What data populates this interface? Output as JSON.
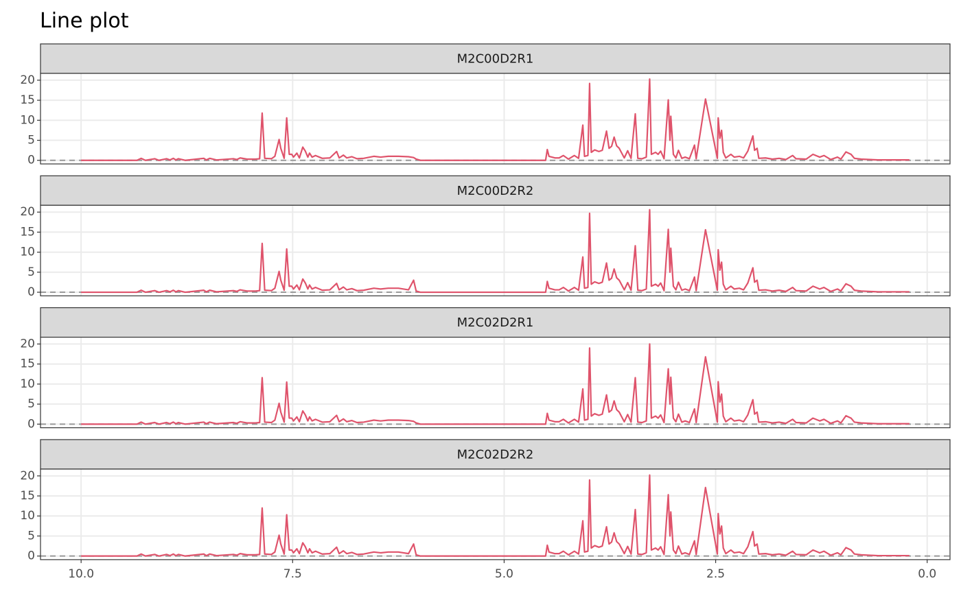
{
  "title": "Line plot",
  "chart_data": [
    {
      "type": "line",
      "facet": "M2C00D2R1",
      "color": "#df536b",
      "grid": true,
      "hline": 0,
      "xlim": [
        10.48,
        -0.27
      ],
      "ylim": [
        -0.9,
        21.7
      ],
      "yticks": [
        0,
        5,
        10,
        15,
        20
      ],
      "x": [
        10.0,
        9.34,
        9.29,
        9.24,
        9.13,
        9.08,
        8.99,
        8.95,
        8.91,
        8.88,
        8.85,
        8.77,
        8.55,
        8.52,
        8.48,
        8.4,
        8.2,
        8.16,
        8.12,
        8.04,
        7.94,
        7.89,
        7.86,
        7.83,
        7.75,
        7.71,
        7.66,
        7.64,
        7.6,
        7.57,
        7.54,
        7.51,
        7.49,
        7.45,
        7.42,
        7.38,
        7.35,
        7.32,
        7.3,
        7.27,
        7.23,
        7.15,
        7.06,
        6.98,
        6.95,
        6.9,
        6.86,
        6.8,
        6.74,
        6.66,
        6.54,
        6.46,
        6.37,
        6.25,
        6.13,
        6.07,
        6.04,
        5.99,
        4.51,
        4.49,
        4.47,
        4.4,
        4.35,
        4.3,
        4.24,
        4.17,
        4.12,
        4.07,
        4.05,
        4.01,
        3.99,
        3.97,
        3.93,
        3.88,
        3.84,
        3.79,
        3.76,
        3.73,
        3.7,
        3.67,
        3.64,
        3.61,
        3.58,
        3.54,
        3.5,
        3.45,
        3.42,
        3.37,
        3.32,
        3.28,
        3.26,
        3.21,
        3.18,
        3.15,
        3.11,
        3.06,
        3.04,
        3.03,
        3.0,
        2.97,
        2.94,
        2.9,
        2.86,
        2.81,
        2.75,
        2.73,
        2.62,
        2.48,
        2.47,
        2.45,
        2.43,
        2.41,
        2.38,
        2.32,
        2.28,
        2.22,
        2.17,
        2.12,
        2.06,
        2.04,
        2.01,
        1.99,
        1.91,
        1.83,
        1.75,
        1.67,
        1.59,
        1.55,
        1.43,
        1.35,
        1.27,
        1.22,
        1.14,
        1.06,
        1.02,
        0.96,
        0.9,
        0.86,
        0.78,
        0.58,
        0.41,
        0.21
      ],
      "values": [
        0,
        0,
        0.5,
        0,
        0.4,
        0,
        0.4,
        0.1,
        0.5,
        0.1,
        0.4,
        0,
        0.5,
        0.1,
        0.5,
        0.1,
        0.4,
        0.2,
        0.6,
        0.3,
        0.3,
        0.4,
        11.8,
        0.5,
        0.4,
        1.0,
        5.2,
        3.0,
        0.5,
        10.6,
        1.5,
        1.5,
        0.8,
        1.8,
        0.6,
        3.3,
        2.3,
        0.8,
        1.8,
        0.8,
        1.2,
        0.5,
        0.6,
        2.2,
        0.6,
        1.3,
        0.6,
        0.9,
        0.4,
        0.5,
        1.0,
        0.8,
        1.0,
        1.0,
        0.9,
        0.7,
        0.3,
        0,
        0,
        2.7,
        1.0,
        0.6,
        0.6,
        1.2,
        0.3,
        1.2,
        0.5,
        8.8,
        1.0,
        1.2,
        19.2,
        2.0,
        2.6,
        2.2,
        2.5,
        7.3,
        3.0,
        3.5,
        5.8,
        3.6,
        3.0,
        1.8,
        0.6,
        2.4,
        0.5,
        11.6,
        0.5,
        0.4,
        0.8,
        20.3,
        1.5,
        2.0,
        1.5,
        2.3,
        0.4,
        15.1,
        5.0,
        11.0,
        1.5,
        0.6,
        2.5,
        0.5,
        0.8,
        0.4,
        3.8,
        0.4,
        15.3,
        0.5,
        10.6,
        5.5,
        7.5,
        2.0,
        0.6,
        1.5,
        0.8,
        1.0,
        0.6,
        2.3,
        6.1,
        2.5,
        3.0,
        0.5,
        0.6,
        0.3,
        0.5,
        0.2,
        1.2,
        0.4,
        0.3,
        1.5,
        0.8,
        1.2,
        0.2,
        0.8,
        0.3,
        2.1,
        1.5,
        0.5,
        0.3,
        0.1,
        0.1,
        0.1
      ]
    },
    {
      "type": "line",
      "facet": "M2C00D2R2",
      "color": "#df536b",
      "grid": true,
      "hline": 0,
      "xlim": [
        10.48,
        -0.27
      ],
      "ylim": [
        -0.9,
        21.7
      ],
      "yticks": [
        0,
        5,
        10,
        15,
        20
      ],
      "x": [
        10.0,
        9.34,
        9.29,
        9.24,
        9.13,
        9.08,
        8.99,
        8.95,
        8.91,
        8.88,
        8.85,
        8.77,
        8.55,
        8.52,
        8.48,
        8.4,
        8.2,
        8.16,
        8.12,
        8.04,
        7.94,
        7.89,
        7.86,
        7.83,
        7.75,
        7.71,
        7.66,
        7.64,
        7.6,
        7.57,
        7.54,
        7.51,
        7.49,
        7.45,
        7.42,
        7.38,
        7.35,
        7.32,
        7.3,
        7.27,
        7.23,
        7.15,
        7.06,
        6.98,
        6.95,
        6.9,
        6.86,
        6.8,
        6.74,
        6.66,
        6.54,
        6.46,
        6.37,
        6.25,
        6.13,
        6.07,
        6.04,
        5.99,
        4.51,
        4.49,
        4.47,
        4.4,
        4.35,
        4.3,
        4.24,
        4.17,
        4.12,
        4.07,
        4.05,
        4.01,
        3.99,
        3.97,
        3.93,
        3.88,
        3.84,
        3.79,
        3.76,
        3.73,
        3.7,
        3.67,
        3.64,
        3.61,
        3.58,
        3.54,
        3.5,
        3.45,
        3.42,
        3.37,
        3.32,
        3.28,
        3.26,
        3.21,
        3.18,
        3.15,
        3.11,
        3.06,
        3.04,
        3.03,
        3.0,
        2.97,
        2.94,
        2.9,
        2.86,
        2.81,
        2.75,
        2.73,
        2.62,
        2.48,
        2.47,
        2.45,
        2.43,
        2.41,
        2.38,
        2.32,
        2.28,
        2.22,
        2.17,
        2.12,
        2.06,
        2.04,
        2.01,
        1.99,
        1.91,
        1.83,
        1.75,
        1.67,
        1.59,
        1.55,
        1.43,
        1.35,
        1.27,
        1.22,
        1.14,
        1.06,
        1.02,
        0.96,
        0.9,
        0.86,
        0.78,
        0.58,
        0.41,
        0.21
      ],
      "values": [
        0,
        0,
        0.5,
        0,
        0.4,
        0,
        0.4,
        0.1,
        0.5,
        0.1,
        0.4,
        0,
        0.5,
        0.1,
        0.5,
        0.1,
        0.4,
        0.2,
        0.6,
        0.3,
        0.3,
        0.4,
        12.2,
        0.5,
        0.4,
        1.0,
        5.2,
        3.0,
        0.5,
        10.8,
        1.5,
        1.5,
        0.8,
        1.8,
        0.6,
        3.3,
        2.3,
        0.8,
        1.8,
        0.8,
        1.2,
        0.5,
        0.6,
        2.2,
        0.6,
        1.3,
        0.6,
        0.9,
        0.4,
        0.5,
        1.0,
        0.8,
        1.0,
        1.0,
        0.6,
        3.0,
        0.3,
        0,
        0,
        2.7,
        1.0,
        0.6,
        0.6,
        1.2,
        0.3,
        1.2,
        0.5,
        8.8,
        1.0,
        1.2,
        19.7,
        2.0,
        2.6,
        2.2,
        2.5,
        7.3,
        3.0,
        3.5,
        5.8,
        3.6,
        3.0,
        1.8,
        0.6,
        2.4,
        0.5,
        11.6,
        0.5,
        0.4,
        0.8,
        20.6,
        1.5,
        2.0,
        1.5,
        2.3,
        0.4,
        15.7,
        5.0,
        11.0,
        1.5,
        0.6,
        2.5,
        0.5,
        0.8,
        0.4,
        3.8,
        0.4,
        15.6,
        0.5,
        10.6,
        5.5,
        7.5,
        2.0,
        0.6,
        1.5,
        0.8,
        1.0,
        0.6,
        2.3,
        6.1,
        2.5,
        3.0,
        0.5,
        0.6,
        0.3,
        0.5,
        0.2,
        1.2,
        0.4,
        0.3,
        1.5,
        0.8,
        1.2,
        0.2,
        0.8,
        0.3,
        2.1,
        1.5,
        0.5,
        0.3,
        0.1,
        0.1,
        0.1
      ]
    },
    {
      "type": "line",
      "facet": "M2C02D2R1",
      "color": "#df536b",
      "grid": true,
      "hline": 0,
      "xlim": [
        10.48,
        -0.27
      ],
      "ylim": [
        -0.9,
        21.7
      ],
      "yticks": [
        0,
        5,
        10,
        15,
        20
      ],
      "x": [
        10.0,
        9.34,
        9.29,
        9.24,
        9.13,
        9.08,
        8.99,
        8.95,
        8.91,
        8.88,
        8.85,
        8.77,
        8.55,
        8.52,
        8.48,
        8.4,
        8.2,
        8.16,
        8.12,
        8.04,
        7.94,
        7.89,
        7.86,
        7.83,
        7.75,
        7.71,
        7.66,
        7.64,
        7.6,
        7.57,
        7.54,
        7.51,
        7.49,
        7.45,
        7.42,
        7.38,
        7.35,
        7.32,
        7.3,
        7.27,
        7.23,
        7.15,
        7.06,
        6.98,
        6.95,
        6.9,
        6.86,
        6.8,
        6.74,
        6.66,
        6.54,
        6.46,
        6.37,
        6.25,
        6.13,
        6.07,
        6.04,
        5.99,
        4.51,
        4.49,
        4.47,
        4.4,
        4.35,
        4.3,
        4.24,
        4.17,
        4.12,
        4.07,
        4.05,
        4.01,
        3.99,
        3.97,
        3.93,
        3.88,
        3.84,
        3.79,
        3.76,
        3.73,
        3.7,
        3.67,
        3.64,
        3.61,
        3.58,
        3.54,
        3.5,
        3.45,
        3.42,
        3.37,
        3.32,
        3.28,
        3.26,
        3.21,
        3.18,
        3.15,
        3.11,
        3.06,
        3.04,
        3.03,
        3.0,
        2.97,
        2.94,
        2.9,
        2.86,
        2.81,
        2.75,
        2.73,
        2.62,
        2.48,
        2.47,
        2.45,
        2.43,
        2.41,
        2.38,
        2.32,
        2.28,
        2.22,
        2.17,
        2.12,
        2.06,
        2.04,
        2.01,
        1.99,
        1.91,
        1.83,
        1.75,
        1.67,
        1.59,
        1.55,
        1.43,
        1.35,
        1.27,
        1.22,
        1.14,
        1.06,
        1.02,
        0.96,
        0.9,
        0.86,
        0.78,
        0.58,
        0.41,
        0.21
      ],
      "values": [
        0,
        0,
        0.5,
        0,
        0.4,
        0,
        0.4,
        0.1,
        0.5,
        0.1,
        0.4,
        0,
        0.5,
        0.1,
        0.5,
        0.1,
        0.4,
        0.2,
        0.6,
        0.3,
        0.3,
        0.4,
        11.6,
        0.5,
        0.4,
        1.0,
        5.2,
        3.0,
        0.5,
        10.5,
        1.5,
        1.5,
        0.8,
        1.8,
        0.6,
        3.3,
        2.3,
        0.8,
        1.8,
        0.8,
        1.2,
        0.5,
        0.6,
        2.2,
        0.6,
        1.3,
        0.6,
        0.9,
        0.4,
        0.5,
        1.0,
        0.8,
        1.0,
        1.0,
        0.9,
        0.7,
        0.3,
        0,
        0,
        2.7,
        1.0,
        0.6,
        0.6,
        1.2,
        0.3,
        1.2,
        0.5,
        8.8,
        1.0,
        1.2,
        19.0,
        2.0,
        2.6,
        2.2,
        2.5,
        7.3,
        3.0,
        3.5,
        5.8,
        3.6,
        3.0,
        1.8,
        0.6,
        2.4,
        0.5,
        11.6,
        0.5,
        0.4,
        0.8,
        20.0,
        1.5,
        2.0,
        1.5,
        2.3,
        0.4,
        13.8,
        5.0,
        11.7,
        1.5,
        0.6,
        2.5,
        0.5,
        0.8,
        0.4,
        3.8,
        0.4,
        16.8,
        0.5,
        10.6,
        5.5,
        7.5,
        2.0,
        0.6,
        1.5,
        0.8,
        1.0,
        0.6,
        2.3,
        6.1,
        2.5,
        3.0,
        0.5,
        0.6,
        0.3,
        0.5,
        0.2,
        1.2,
        0.4,
        0.3,
        1.5,
        0.8,
        1.2,
        0.2,
        0.8,
        0.3,
        2.1,
        1.5,
        0.5,
        0.3,
        0.1,
        0.1,
        0.1
      ]
    },
    {
      "type": "line",
      "facet": "M2C02D2R2",
      "color": "#df536b",
      "grid": true,
      "hline": 0,
      "xlim": [
        10.48,
        -0.27
      ],
      "ylim": [
        -0.9,
        21.7
      ],
      "yticks": [
        0,
        5,
        10,
        15,
        20
      ],
      "xticks": [
        {
          "value": 10,
          "label": "10.0"
        },
        {
          "value": 7.5,
          "label": "7.5"
        },
        {
          "value": 5,
          "label": "5.0"
        },
        {
          "value": 2.5,
          "label": "2.5"
        },
        {
          "value": 0,
          "label": "0.0"
        }
      ],
      "x": [
        10.0,
        9.34,
        9.29,
        9.24,
        9.13,
        9.08,
        8.99,
        8.95,
        8.91,
        8.88,
        8.85,
        8.77,
        8.55,
        8.52,
        8.48,
        8.4,
        8.2,
        8.16,
        8.12,
        8.04,
        7.94,
        7.89,
        7.86,
        7.83,
        7.75,
        7.71,
        7.66,
        7.64,
        7.6,
        7.57,
        7.54,
        7.51,
        7.49,
        7.45,
        7.42,
        7.38,
        7.35,
        7.32,
        7.3,
        7.27,
        7.23,
        7.15,
        7.06,
        6.98,
        6.95,
        6.9,
        6.86,
        6.8,
        6.74,
        6.66,
        6.54,
        6.46,
        6.37,
        6.25,
        6.13,
        6.07,
        6.04,
        5.99,
        4.51,
        4.49,
        4.47,
        4.4,
        4.35,
        4.3,
        4.24,
        4.17,
        4.12,
        4.07,
        4.05,
        4.01,
        3.99,
        3.97,
        3.93,
        3.88,
        3.84,
        3.79,
        3.76,
        3.73,
        3.7,
        3.67,
        3.64,
        3.61,
        3.58,
        3.54,
        3.5,
        3.45,
        3.42,
        3.37,
        3.32,
        3.28,
        3.26,
        3.21,
        3.18,
        3.15,
        3.11,
        3.06,
        3.04,
        3.03,
        3.0,
        2.97,
        2.94,
        2.9,
        2.86,
        2.81,
        2.75,
        2.73,
        2.62,
        2.48,
        2.47,
        2.45,
        2.43,
        2.41,
        2.38,
        2.32,
        2.28,
        2.22,
        2.17,
        2.12,
        2.06,
        2.04,
        2.01,
        1.99,
        1.91,
        1.83,
        1.75,
        1.67,
        1.59,
        1.55,
        1.43,
        1.35,
        1.27,
        1.22,
        1.14,
        1.06,
        1.02,
        0.96,
        0.9,
        0.86,
        0.78,
        0.58,
        0.41,
        0.21
      ],
      "values": [
        0,
        0,
        0.5,
        0,
        0.4,
        0,
        0.4,
        0.1,
        0.5,
        0.1,
        0.4,
        0,
        0.5,
        0.1,
        0.5,
        0.1,
        0.4,
        0.2,
        0.6,
        0.3,
        0.3,
        0.4,
        12.0,
        0.5,
        0.4,
        1.0,
        5.2,
        3.0,
        0.5,
        10.3,
        1.5,
        1.5,
        0.8,
        1.8,
        0.6,
        3.3,
        2.3,
        0.8,
        1.8,
        0.8,
        1.2,
        0.5,
        0.6,
        2.2,
        0.6,
        1.3,
        0.6,
        0.9,
        0.4,
        0.5,
        1.0,
        0.8,
        1.0,
        1.0,
        0.6,
        3.0,
        0.3,
        0,
        0,
        2.7,
        1.0,
        0.6,
        0.6,
        1.2,
        0.3,
        1.2,
        0.5,
        8.8,
        1.0,
        1.2,
        19.0,
        2.0,
        2.6,
        2.2,
        2.5,
        7.3,
        3.0,
        3.5,
        5.8,
        3.6,
        3.0,
        1.8,
        0.6,
        2.4,
        0.5,
        11.6,
        0.5,
        0.4,
        0.8,
        20.2,
        1.5,
        2.0,
        1.5,
        2.3,
        0.4,
        15.3,
        5.0,
        11.0,
        1.5,
        0.6,
        2.5,
        0.5,
        0.8,
        0.4,
        3.8,
        0.4,
        17.1,
        0.5,
        10.6,
        5.5,
        7.5,
        2.0,
        0.6,
        1.5,
        0.8,
        1.0,
        0.6,
        2.3,
        6.1,
        2.5,
        3.0,
        0.5,
        0.6,
        0.3,
        0.5,
        0.2,
        1.2,
        0.4,
        0.3,
        1.5,
        0.8,
        1.2,
        0.2,
        0.8,
        0.3,
        2.1,
        1.5,
        0.5,
        0.3,
        0.1,
        0.1,
        0.1
      ]
    }
  ]
}
